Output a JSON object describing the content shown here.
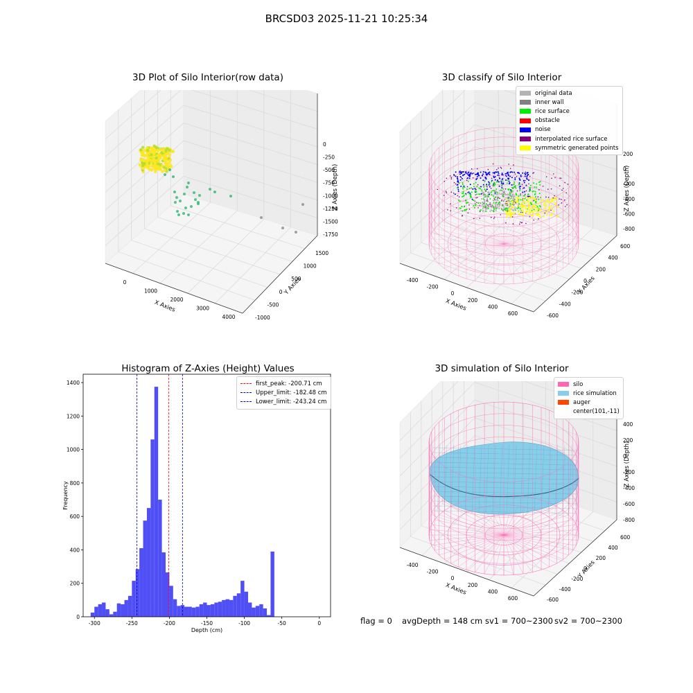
{
  "suptitle": "BRCSD03 2025-11-21 10:25:34",
  "footer": {
    "flag": "flag = 0",
    "avg_depth": "avgDepth = 148 cm",
    "sv1": "sv1 = 700~2300",
    "sv2": "sv2 = 700~2300"
  },
  "chart_data": [
    {
      "type": "scatter",
      "title": "3D Plot of Silo Interior(row data)",
      "xlabel": "X Axies",
      "ylabel": "Y Axies",
      "zlabel": "Z Axies (Depth)",
      "x_ticks": [
        "0",
        "1000",
        "2000",
        "3000",
        "4000"
      ],
      "y_ticks": [
        "-1000",
        "-500",
        "0",
        "500",
        "1000",
        "1500"
      ],
      "z_ticks": [
        "0",
        "-250",
        "-500",
        "-750",
        "-1000",
        "-1250",
        "-1500",
        "-1750"
      ],
      "xlim": [
        -500,
        4200
      ],
      "ylim": [
        -1000,
        1700
      ],
      "zlim": [
        -1800,
        100
      ],
      "colors": {
        "high": "#fde725",
        "mid": "#b5de2b",
        "low": "#3cbb75",
        "far": "#909090"
      }
    },
    {
      "type": "scatter",
      "title": "3D classify of Silo Interior",
      "xlabel": "X Axies",
      "ylabel": "Y Axies",
      "zlabel": "Z Axies (Depth)",
      "x_ticks": [
        "-400",
        "-200",
        "0",
        "200",
        "400",
        "600"
      ],
      "y_ticks": [
        "-600",
        "-400",
        "-200",
        "0",
        "200",
        "400",
        "600"
      ],
      "z_ticks": [
        "200",
        "0",
        "-200",
        "-400",
        "-600",
        "-800"
      ],
      "legend": [
        {
          "label": "original data",
          "color": "#b3b3b3"
        },
        {
          "label": "inner wall",
          "color": "#808080"
        },
        {
          "label": "rice surface",
          "color": "#00ee00"
        },
        {
          "label": "obstacle",
          "color": "#ff0000"
        },
        {
          "label": "noise",
          "color": "#0000ee"
        },
        {
          "label": "interpolated rice surface",
          "color": "#800080"
        },
        {
          "label": "symmetric generated points",
          "color": "#ffff00"
        }
      ],
      "silo_color": "#ff69b4"
    },
    {
      "type": "bar",
      "title": "Histogram of Z-Axies (Height) Values",
      "xlabel": "Depth (cm)",
      "ylabel": "Frequency",
      "xlim": [
        -315,
        15
      ],
      "ylim": [
        0,
        1450
      ],
      "x_ticks": [
        -300,
        -250,
        -200,
        -150,
        -100,
        -50,
        0
      ],
      "y_ticks": [
        0,
        200,
        400,
        600,
        800,
        1000,
        1200,
        1400
      ],
      "bin_start": -305,
      "bin_width": 5,
      "values": [
        25,
        60,
        75,
        85,
        45,
        15,
        30,
        80,
        75,
        100,
        125,
        215,
        285,
        410,
        575,
        650,
        1060,
        1375,
        700,
        385,
        265,
        185,
        105,
        65,
        70,
        60,
        60,
        55,
        60,
        75,
        85,
        70,
        75,
        85,
        90,
        100,
        105,
        100,
        125,
        140,
        215,
        150,
        85,
        55,
        65,
        75,
        50,
        10,
        390
      ],
      "bar_color": "#4f4ff5",
      "lines": [
        {
          "label": "first_peak: -200.71 cm",
          "x": -200.71,
          "color": "#ff0000"
        },
        {
          "label": "Upper_limit: -182.48 cm",
          "x": -182.48,
          "color": "#0000cc"
        },
        {
          "label": "Lower_limit: -243.24 cm",
          "x": -243.24,
          "color": "#0000cc"
        }
      ]
    },
    {
      "type": "area",
      "title": "3D simulation of Silo Interior",
      "xlabel": "X Axies",
      "ylabel": "Y Axies",
      "zlabel": "Z Axies (Depth)",
      "x_ticks": [
        "-400",
        "-200",
        "0",
        "200",
        "400",
        "600"
      ],
      "y_ticks": [
        "-600",
        "-400",
        "-200",
        "0",
        "200",
        "400",
        "600"
      ],
      "z_ticks": [
        "400",
        "200",
        "0",
        "-200",
        "-400",
        "-600",
        "-800"
      ],
      "legend": [
        {
          "label": "silo",
          "color": "#ff69b4"
        },
        {
          "label": "rice simulation",
          "color": "#87ceeb"
        },
        {
          "label": "auger",
          "color": "#ff4500"
        },
        {
          "label": "center(101,-11)",
          "color": "none"
        }
      ]
    }
  ]
}
